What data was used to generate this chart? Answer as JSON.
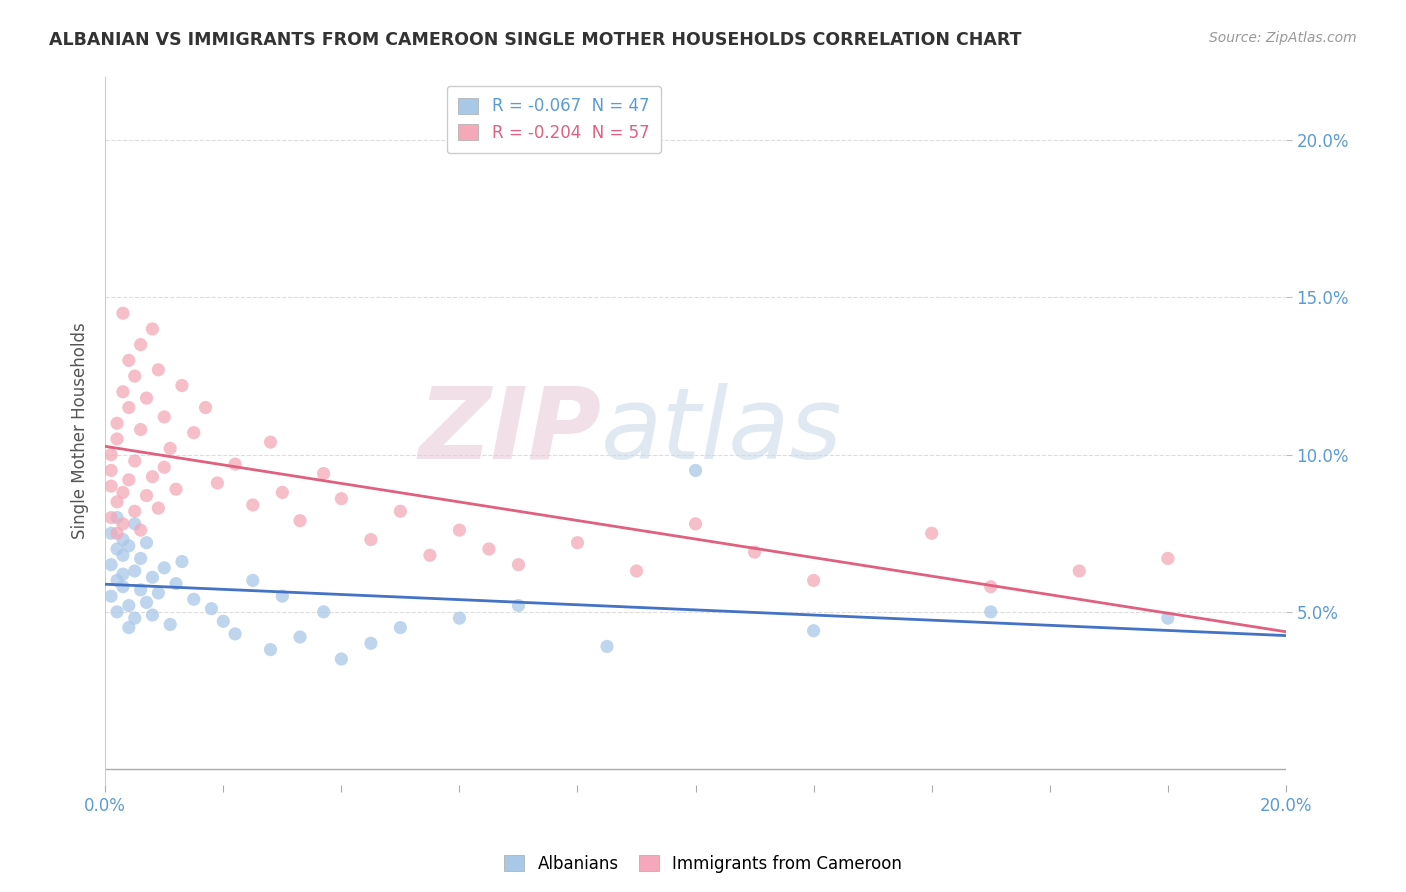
{
  "title": "ALBANIAN VS IMMIGRANTS FROM CAMEROON SINGLE MOTHER HOUSEHOLDS CORRELATION CHART",
  "source": "Source: ZipAtlas.com",
  "ylabel": "Single Mother Households",
  "legend_albanians": "R = -0.067  N = 47",
  "legend_cameroon": "R = -0.204  N = 57",
  "albanians_color": "#a8c8e8",
  "cameroon_color": "#f4a8b8",
  "albanians_line_color": "#4472c4",
  "cameroon_line_color": "#e06080",
  "albanians_r": -0.067,
  "albanians_n": 47,
  "cameroon_r": -0.204,
  "cameroon_n": 57,
  "xmin": 0.0,
  "xmax": 0.2,
  "ymin": -0.005,
  "ymax": 0.22,
  "watermark_zip": "ZIP",
  "watermark_atlas": "atlas",
  "albanians_x": [
    0.001,
    0.001,
    0.001,
    0.002,
    0.002,
    0.002,
    0.002,
    0.003,
    0.003,
    0.003,
    0.003,
    0.004,
    0.004,
    0.004,
    0.005,
    0.005,
    0.005,
    0.006,
    0.006,
    0.007,
    0.007,
    0.008,
    0.008,
    0.009,
    0.01,
    0.011,
    0.012,
    0.013,
    0.015,
    0.018,
    0.02,
    0.022,
    0.025,
    0.028,
    0.03,
    0.033,
    0.037,
    0.04,
    0.045,
    0.05,
    0.06,
    0.07,
    0.085,
    0.1,
    0.12,
    0.15,
    0.18
  ],
  "albanians_y": [
    0.075,
    0.065,
    0.055,
    0.07,
    0.06,
    0.05,
    0.08,
    0.068,
    0.058,
    0.073,
    0.062,
    0.045,
    0.071,
    0.052,
    0.078,
    0.048,
    0.063,
    0.057,
    0.067,
    0.053,
    0.072,
    0.049,
    0.061,
    0.056,
    0.064,
    0.046,
    0.059,
    0.066,
    0.054,
    0.051,
    0.047,
    0.043,
    0.06,
    0.038,
    0.055,
    0.042,
    0.05,
    0.035,
    0.04,
    0.045,
    0.048,
    0.052,
    0.039,
    0.095,
    0.044,
    0.05,
    0.048
  ],
  "cameroon_x": [
    0.001,
    0.001,
    0.001,
    0.001,
    0.002,
    0.002,
    0.002,
    0.002,
    0.003,
    0.003,
    0.003,
    0.003,
    0.004,
    0.004,
    0.004,
    0.005,
    0.005,
    0.005,
    0.006,
    0.006,
    0.006,
    0.007,
    0.007,
    0.008,
    0.008,
    0.009,
    0.009,
    0.01,
    0.01,
    0.011,
    0.012,
    0.013,
    0.015,
    0.017,
    0.019,
    0.022,
    0.025,
    0.028,
    0.03,
    0.033,
    0.037,
    0.04,
    0.045,
    0.05,
    0.055,
    0.06,
    0.065,
    0.07,
    0.08,
    0.09,
    0.1,
    0.11,
    0.12,
    0.14,
    0.15,
    0.165,
    0.18
  ],
  "cameroon_y": [
    0.09,
    0.095,
    0.08,
    0.1,
    0.085,
    0.11,
    0.075,
    0.105,
    0.145,
    0.088,
    0.12,
    0.078,
    0.13,
    0.092,
    0.115,
    0.098,
    0.125,
    0.082,
    0.108,
    0.135,
    0.076,
    0.118,
    0.087,
    0.14,
    0.093,
    0.127,
    0.083,
    0.112,
    0.096,
    0.102,
    0.089,
    0.122,
    0.107,
    0.115,
    0.091,
    0.097,
    0.084,
    0.104,
    0.088,
    0.079,
    0.094,
    0.086,
    0.073,
    0.082,
    0.068,
    0.076,
    0.07,
    0.065,
    0.072,
    0.063,
    0.078,
    0.069,
    0.06,
    0.075,
    0.058,
    0.063,
    0.067
  ]
}
